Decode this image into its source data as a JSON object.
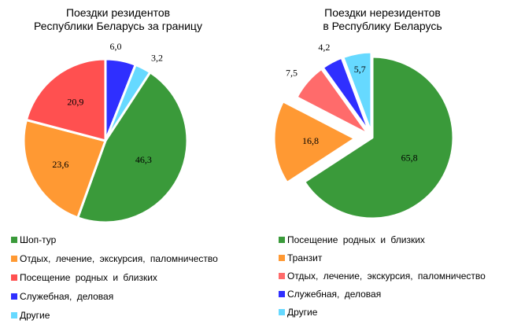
{
  "chart_data": [
    {
      "type": "pie",
      "title": [
        "Поездки резидентов",
        "Республики Беларусь за границу"
      ],
      "series": [
        {
          "name": "Шоп-тур",
          "value": 46.3,
          "label": "46,3",
          "color": "#3a9a3a"
        },
        {
          "name": "Отдых,  лечение,  экскурсия, паломничество",
          "value": 23.6,
          "label": "23,6",
          "color": "#ff9933"
        },
        {
          "name": "Посещение родных и близких",
          "value": 20.9,
          "label": "20,9",
          "color": "#ff5050"
        },
        {
          "name": "Служебная,  деловая",
          "value": 6.0,
          "label": "6,0",
          "color": "#2f2fff"
        },
        {
          "name": "Другие",
          "value": 3.2,
          "label": "3,2",
          "color": "#66d9ff"
        }
      ],
      "legend_position": "bottom"
    },
    {
      "type": "pie",
      "title": [
        "Поездки нерезидентов",
        "в Республику Беларусь"
      ],
      "series": [
        {
          "name": "Посещение родных и близких",
          "value": 65.8,
          "label": "65,8",
          "color": "#3a9a3a"
        },
        {
          "name": "Транзит",
          "value": 16.8,
          "label": "16,8",
          "color": "#ff9933"
        },
        {
          "name": "Отдых,  лечение,  экскурсия, паломничество",
          "value": 7.5,
          "label": "7,5",
          "color": "#ff6b6b"
        },
        {
          "name": "Служебная,  деловая",
          "value": 4.2,
          "label": "4,2",
          "color": "#2f2fff"
        },
        {
          "name": "Другие",
          "value": 5.7,
          "label": "5,7",
          "color": "#66d9ff"
        }
      ],
      "exploded": true,
      "legend_position": "bottom"
    }
  ]
}
